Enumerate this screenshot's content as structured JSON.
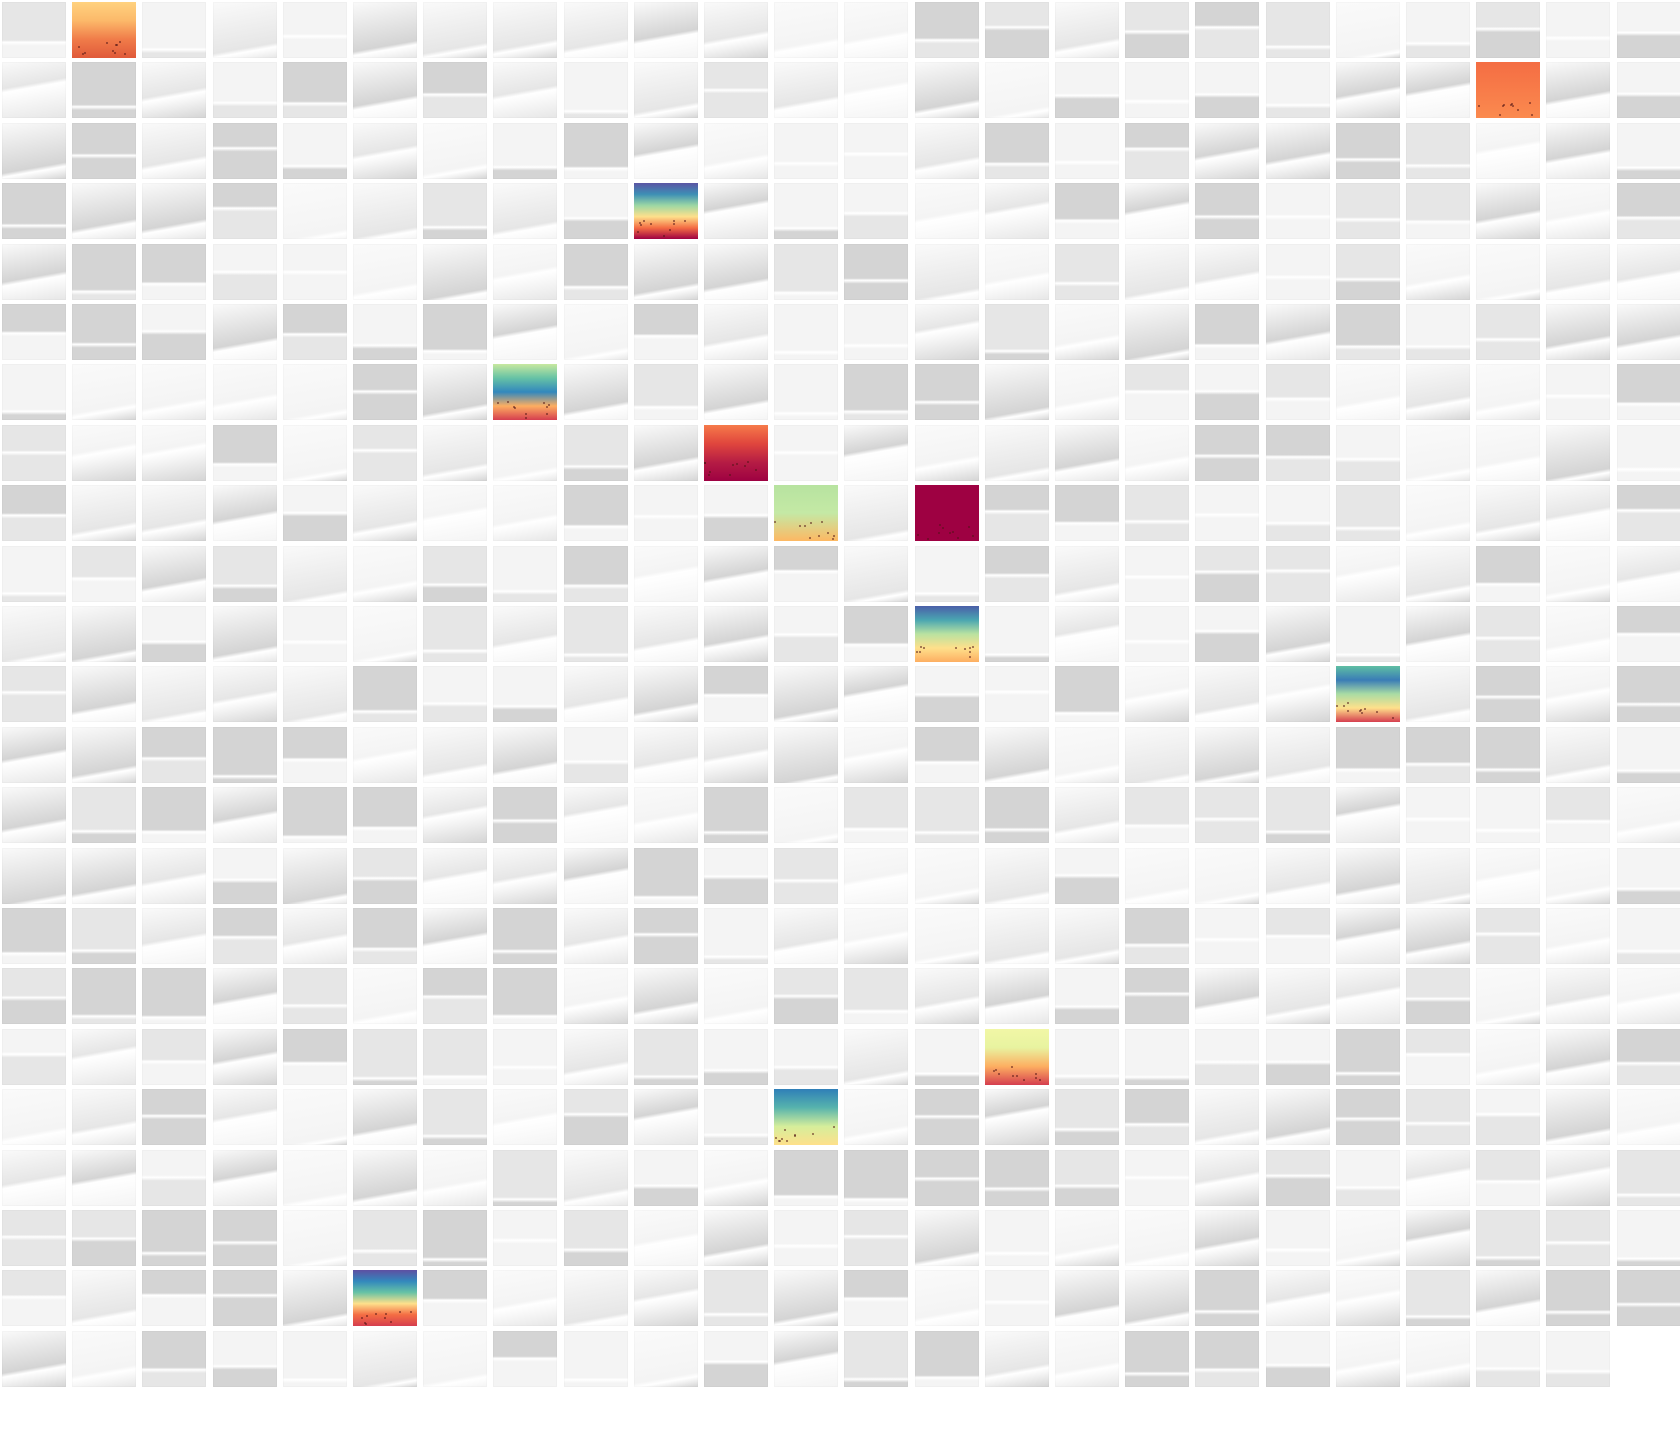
{
  "grid": {
    "columns": 24,
    "rows": 23,
    "tile_count": 551
  },
  "palette": {
    "background": "#ffffff",
    "gray_light": "#f4f4f4",
    "gray_mid": "#e6e6e6",
    "gray_dark": "#d4d4d4"
  },
  "highlights": [
    {
      "row": 0,
      "col": 1,
      "style": "yellow-orange",
      "colors": [
        "#ffd27f",
        "#fcb96a",
        "#f07b49",
        "#e05a3a"
      ]
    },
    {
      "row": 1,
      "col": 21,
      "style": "orange-block",
      "colors": [
        "#f46d43",
        "#fb8a4f"
      ]
    },
    {
      "row": 3,
      "col": 9,
      "style": "spectral-blue-to-red",
      "colors": [
        "#5b55a4",
        "#3d8fb5",
        "#9bd7a4",
        "#fee08b",
        "#f46d43",
        "#9e0142"
      ]
    },
    {
      "row": 6,
      "col": 7,
      "style": "spectral-green-blue-red",
      "colors": [
        "#c7e89f",
        "#66c2a5",
        "#3288bd",
        "#fdae61",
        "#d53e4f"
      ]
    },
    {
      "row": 7,
      "col": 10,
      "style": "red-dark",
      "colors": [
        "#f67a4a",
        "#e0463d",
        "#b51c44",
        "#9e0142"
      ]
    },
    {
      "row": 8,
      "col": 11,
      "style": "light-green",
      "colors": [
        "#b7e3a0",
        "#c4e9a5",
        "#fdb863"
      ]
    },
    {
      "row": 8,
      "col": 13,
      "style": "dark-red-block",
      "colors": [
        "#9e0142"
      ]
    },
    {
      "row": 10,
      "col": 13,
      "style": "spectral-blue-to-yellow",
      "colors": [
        "#4a5ea8",
        "#4aa6b1",
        "#b9e2a1",
        "#fee08b",
        "#fdae61"
      ]
    },
    {
      "row": 11,
      "col": 19,
      "style": "spectral-teal-red",
      "colors": [
        "#5fbfa3",
        "#3a7db6",
        "#a9dca4",
        "#fee08b",
        "#d53e4f"
      ]
    },
    {
      "row": 17,
      "col": 14,
      "style": "pale-yellow",
      "colors": [
        "#f1f7a6",
        "#e8f3a0",
        "#fdae61",
        "#d53e4f"
      ]
    },
    {
      "row": 18,
      "col": 11,
      "style": "blue-teal-yellow",
      "colors": [
        "#2f7fb8",
        "#56b3ad",
        "#d6ee9b",
        "#fee08b"
      ]
    },
    {
      "row": 21,
      "col": 5,
      "style": "spectral-blue-to-red",
      "colors": [
        "#5e4fa2",
        "#3288bd",
        "#66c2a5",
        "#fee08b",
        "#f46d43",
        "#d53e4f"
      ]
    }
  ]
}
